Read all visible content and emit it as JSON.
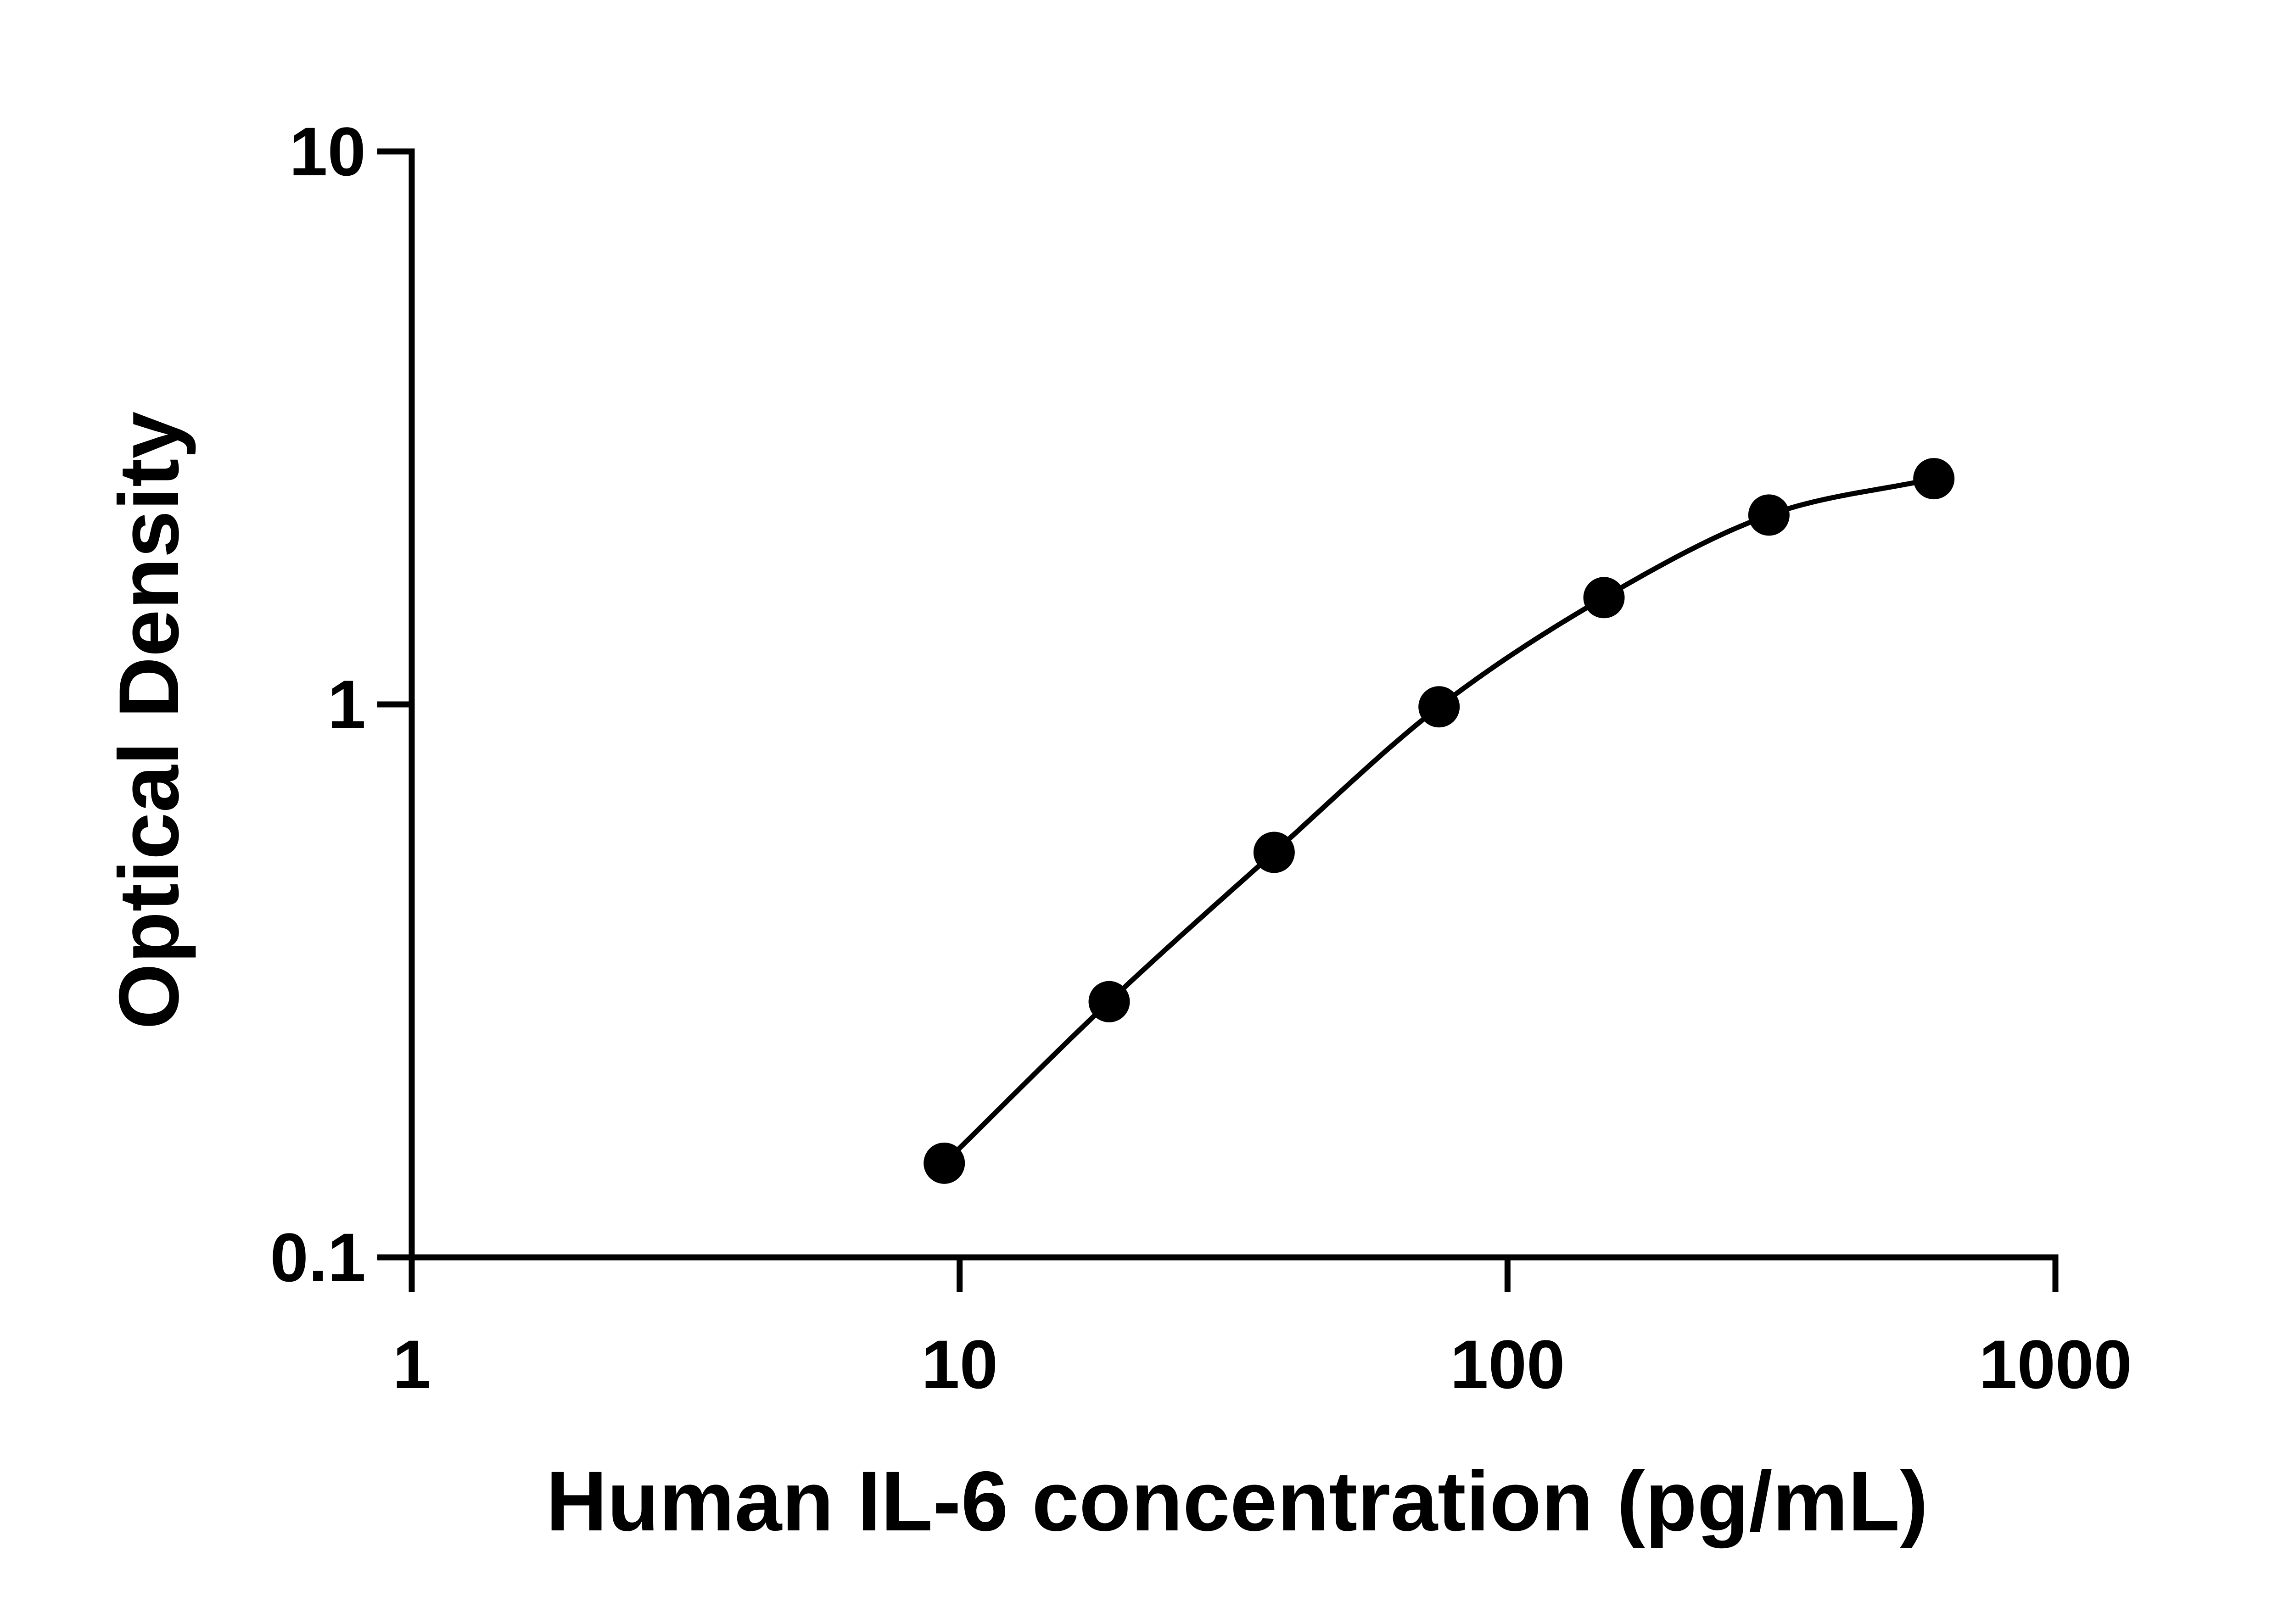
{
  "chart_data": {
    "type": "scatter",
    "title": "",
    "xlabel": "Human IL-6 concentration (pg/mL)",
    "ylabel": "Optical Density",
    "xscale": "log",
    "yscale": "log",
    "xlim": [
      1,
      1000
    ],
    "ylim": [
      0.1,
      10
    ],
    "x_ticks": [
      {
        "value": 1,
        "label": "1"
      },
      {
        "value": 10,
        "label": "10"
      },
      {
        "value": 100,
        "label": "100"
      },
      {
        "value": 1000,
        "label": "1000"
      }
    ],
    "y_ticks": [
      {
        "value": 0.1,
        "label": "0.1"
      },
      {
        "value": 1,
        "label": "1"
      },
      {
        "value": 10,
        "label": "10"
      }
    ],
    "grid": false,
    "legend": "none",
    "series": [
      {
        "x": [
          9.375,
          18.75,
          37.5,
          75,
          150,
          300,
          600
        ],
        "y": [
          0.148,
          0.29,
          0.54,
          0.99,
          1.56,
          2.2,
          2.56
        ],
        "markers": true,
        "fit_curve": true
      }
    ],
    "colors": {
      "marks": "#000000",
      "background": "#ffffff"
    }
  }
}
